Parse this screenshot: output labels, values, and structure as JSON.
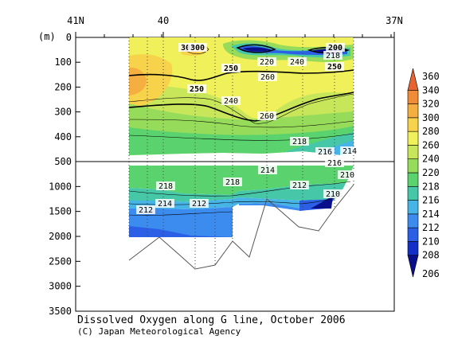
{
  "chart_data": {
    "type": "heatmap",
    "title": "Dissolved Oxygen along G line, October 2006",
    "credit": "(C) Japan Meteorological Agency",
    "ylabel": "(m)",
    "x_ticks": [
      "41N",
      "40",
      "37N"
    ],
    "y_ticks": [
      "0",
      "100",
      "200",
      "300",
      "400",
      "500",
      "1000",
      "1500",
      "2000",
      "2500",
      "3000",
      "3500"
    ],
    "y_scale": "split: linear 0–500 m (upper panel), linear 500–3500 m (lower panel)",
    "grid": false,
    "colorbar": {
      "levels": [
        206,
        208,
        210,
        212,
        214,
        216,
        218,
        220,
        240,
        260,
        280,
        300,
        320,
        340,
        360
      ],
      "colors": [
        "#0a0f8c",
        "#1430c8",
        "#2a5fe6",
        "#3c8cf0",
        "#46b4e6",
        "#46c8a8",
        "#5ad26e",
        "#96dc5a",
        "#c8e65a",
        "#f0f05a",
        "#f7d24b",
        "#f5af41",
        "#f08c37",
        "#e66432"
      ],
      "placement": "right"
    },
    "contour_labels": [
      {
        "text": "300"
      },
      {
        "text": "300"
      },
      {
        "text": "200"
      },
      {
        "text": "220"
      },
      {
        "text": "218"
      },
      {
        "text": "240"
      },
      {
        "text": "250"
      },
      {
        "text": "250"
      },
      {
        "text": "260"
      },
      {
        "text": "250"
      },
      {
        "text": "240"
      },
      {
        "text": "260"
      },
      {
        "text": "218"
      },
      {
        "text": "216"
      },
      {
        "text": "214"
      },
      {
        "text": "216"
      },
      {
        "text": "210"
      },
      {
        "text": "218"
      },
      {
        "text": "218"
      },
      {
        "text": "214"
      },
      {
        "text": "212"
      },
      {
        "text": "212"
      },
      {
        "text": "214"
      },
      {
        "text": "212"
      },
      {
        "text": "210"
      }
    ]
  }
}
